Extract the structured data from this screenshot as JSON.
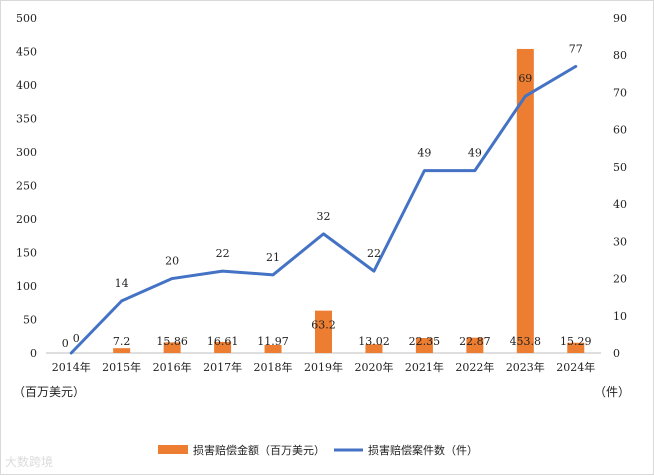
{
  "chart_data": {
    "type": "bar",
    "categories": [
      "2014年",
      "2015年",
      "2016年",
      "2017年",
      "2018年",
      "2019年",
      "2020年",
      "2021年",
      "2022年",
      "2023年",
      "2024年"
    ],
    "series": [
      {
        "name": "损害赔偿金额（百万美元）",
        "type": "bar",
        "axis": "left",
        "color": "#ED7D31",
        "values": [
          0,
          7.2,
          15.86,
          16.61,
          11.97,
          63.2,
          13.02,
          22.35,
          22.87,
          453.8,
          15.29
        ],
        "labels": [
          "0",
          "7.2",
          "15.86",
          "16.61",
          "11.97",
          "63.2",
          "13.02",
          "22.35",
          "22.87",
          "453.8",
          "15.29"
        ]
      },
      {
        "name": "损害赔偿案件数（件）",
        "type": "line",
        "axis": "right",
        "color": "#4472C4",
        "values": [
          0,
          14,
          20,
          22,
          21,
          32,
          22,
          49,
          49,
          69,
          77
        ],
        "labels": [
          "0",
          "14",
          "20",
          "22",
          "21",
          "32",
          "22",
          "49",
          "49",
          "69",
          "77"
        ]
      }
    ],
    "y_left": {
      "min": 0,
      "max": 500,
      "step": 50,
      "unit_label": "（百万美元）"
    },
    "y_right": {
      "min": 0,
      "max": 90,
      "step": 10,
      "unit_label": "（件）"
    },
    "legend_position": "bottom",
    "grid": false
  },
  "watermark": "大数跨境"
}
